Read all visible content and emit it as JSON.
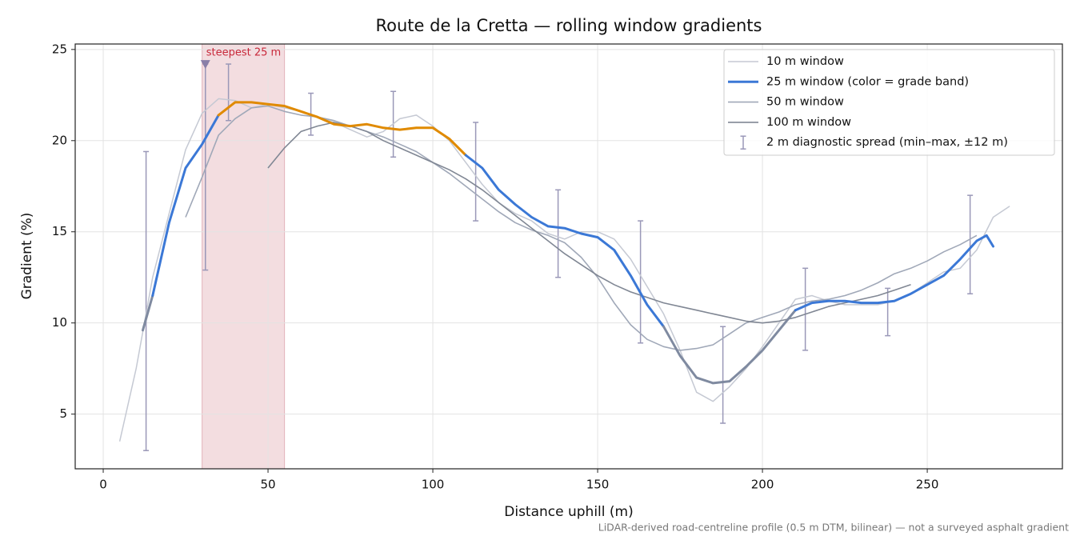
{
  "chart_data": {
    "type": "line",
    "title": "Route de la Cretta — rolling window gradients",
    "xlabel": "Distance uphill (m)",
    "ylabel": "Gradient (%)",
    "footnote": "LiDAR-derived road-centreline profile (0.5 m DTM, bilinear) — not a surveyed asphalt gradient",
    "xlim": [
      -8.5,
      291
    ],
    "ylim": [
      2.0,
      25.3
    ],
    "xticks": [
      0,
      50,
      100,
      150,
      200,
      250
    ],
    "yticks": [
      5,
      10,
      15,
      20,
      25
    ],
    "grid": true,
    "legend": "upper right",
    "series": [
      {
        "name": "10 m window",
        "color": "#c5c9d3",
        "x": [
          5,
          10,
          15,
          20,
          25,
          30,
          35,
          40,
          45,
          50,
          55,
          60,
          65,
          70,
          75,
          80,
          85,
          90,
          95,
          100,
          105,
          110,
          115,
          120,
          125,
          130,
          135,
          140,
          145,
          150,
          155,
          160,
          165,
          170,
          175,
          180,
          185,
          190,
          195,
          200,
          205,
          210,
          215,
          220,
          225,
          230,
          235,
          240,
          245,
          250,
          255,
          260,
          265,
          270,
          275
        ],
        "values": [
          3.5,
          7.5,
          12.5,
          16,
          19.5,
          21.5,
          22.3,
          22.2,
          21.8,
          22,
          21.8,
          21.6,
          21.3,
          21,
          20.6,
          20.2,
          20.5,
          21.2,
          21.4,
          20.8,
          20,
          18.8,
          17.6,
          16.6,
          16,
          15.6,
          14.9,
          14.6,
          15,
          15,
          14.6,
          13.5,
          12,
          10.5,
          8.5,
          6.2,
          5.7,
          6.5,
          7.5,
          8.7,
          10,
          11.3,
          11.5,
          11.2,
          11,
          11,
          11,
          11.2,
          11.6,
          12.2,
          12.8,
          13,
          14,
          15.8,
          16.4
        ]
      },
      {
        "name": "25 m window (color = grade band)",
        "color": "#3b78d6",
        "bands": [
          {
            "below": 10,
            "color": "#7f8aa0"
          },
          {
            "below": 20,
            "color": "#3b78d6"
          },
          {
            "color": "#e08a00"
          }
        ],
        "x": [
          12,
          15,
          20,
          25,
          30,
          35,
          40,
          45,
          50,
          55,
          60,
          65,
          70,
          75,
          80,
          85,
          90,
          95,
          100,
          105,
          110,
          115,
          120,
          125,
          130,
          135,
          140,
          145,
          150,
          155,
          160,
          165,
          170,
          175,
          180,
          185,
          190,
          195,
          200,
          205,
          210,
          215,
          220,
          225,
          230,
          235,
          240,
          245,
          250,
          255,
          260,
          265,
          268,
          270
        ],
        "values": [
          9.6,
          11.5,
          15.5,
          18.5,
          19.8,
          21.4,
          22.1,
          22.1,
          22.0,
          21.9,
          21.6,
          21.3,
          20.9,
          20.8,
          20.9,
          20.7,
          20.6,
          20.7,
          20.7,
          20.1,
          19.2,
          18.5,
          17.3,
          16.5,
          15.8,
          15.3,
          15.2,
          14.9,
          14.7,
          14.0,
          12.6,
          11.0,
          9.8,
          8.2,
          7.0,
          6.7,
          6.8,
          7.6,
          8.5,
          9.6,
          10.7,
          11.1,
          11.2,
          11.2,
          11.1,
          11.1,
          11.2,
          11.6,
          12.1,
          12.6,
          13.5,
          14.5,
          14.8,
          14.2
        ]
      },
      {
        "name": "50 m window",
        "color": "#a0a8b8",
        "x": [
          25,
          30,
          35,
          40,
          45,
          50,
          55,
          60,
          65,
          70,
          75,
          80,
          85,
          90,
          95,
          100,
          105,
          110,
          115,
          120,
          125,
          130,
          135,
          140,
          145,
          150,
          155,
          160,
          165,
          170,
          175,
          180,
          185,
          190,
          195,
          200,
          205,
          210,
          215,
          220,
          225,
          230,
          235,
          240,
          245,
          250,
          255,
          260,
          265
        ],
        "values": [
          15.8,
          18,
          20.3,
          21.2,
          21.8,
          21.9,
          21.6,
          21.4,
          21.3,
          21.1,
          20.8,
          20.5,
          20.2,
          19.8,
          19.4,
          18.8,
          18.2,
          17.5,
          16.8,
          16.1,
          15.5,
          15.1,
          14.8,
          14.4,
          13.6,
          12.5,
          11.1,
          9.9,
          9.1,
          8.7,
          8.5,
          8.6,
          8.8,
          9.4,
          10.0,
          10.3,
          10.6,
          11.0,
          11.2,
          11.3,
          11.5,
          11.8,
          12.2,
          12.7,
          13.0,
          13.4,
          13.9,
          14.3,
          14.8
        ]
      },
      {
        "name": "100 m window",
        "color": "#808794",
        "x": [
          50,
          55,
          60,
          65,
          70,
          75,
          80,
          85,
          90,
          95,
          100,
          105,
          110,
          115,
          120,
          125,
          130,
          135,
          140,
          145,
          150,
          155,
          160,
          165,
          170,
          175,
          180,
          185,
          190,
          195,
          200,
          205,
          210,
          215,
          220,
          225,
          230,
          235,
          240,
          245
        ],
        "values": [
          18.5,
          19.6,
          20.5,
          20.8,
          21.0,
          20.8,
          20.5,
          20.0,
          19.6,
          19.2,
          18.8,
          18.4,
          17.9,
          17.3,
          16.6,
          15.9,
          15.2,
          14.5,
          13.8,
          13.2,
          12.6,
          12.1,
          11.7,
          11.4,
          11.1,
          10.9,
          10.7,
          10.5,
          10.3,
          10.1,
          10.0,
          10.1,
          10.3,
          10.6,
          10.9,
          11.1,
          11.3,
          11.5,
          11.8,
          12.1
        ]
      }
    ],
    "errorbars": {
      "name": "2 m diagnostic spread (min–max, ±12 m)",
      "color": "#9a98b8",
      "x": [
        13,
        31,
        38,
        63,
        88,
        113,
        138,
        163,
        188,
        213,
        238,
        263
      ],
      "low": [
        3.0,
        12.9,
        21.1,
        20.3,
        19.1,
        15.6,
        12.5,
        8.9,
        4.5,
        8.5,
        9.3,
        11.6
      ],
      "high": [
        19.4,
        24.2,
        24.2,
        22.6,
        22.7,
        21.0,
        17.3,
        15.6,
        9.8,
        13.0,
        11.9,
        17.0
      ]
    },
    "highlight": {
      "x": [
        30,
        55
      ],
      "color": "#f3dde0",
      "edge": "#e2b3ba"
    },
    "annotation": {
      "text": "steepest 25 m",
      "x": 31,
      "y": 24.2,
      "color": "#c8283a",
      "marker_color": "#8a7fa8"
    }
  }
}
